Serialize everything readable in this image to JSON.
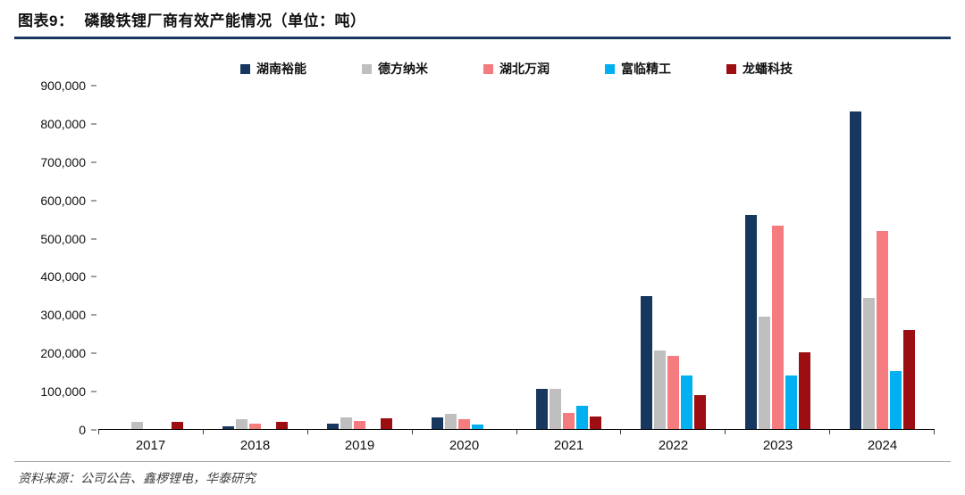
{
  "header": {
    "figure_label": "图表9：",
    "title": "磷酸铁锂厂商有效产能情况（单位：吨）"
  },
  "footer": {
    "source": "资料来源：公司公告、鑫椤锂电，华泰研究"
  },
  "colors": {
    "title_rule": "#17375E",
    "axis": "#000000"
  },
  "chart_data": {
    "type": "bar",
    "title": "磷酸铁锂厂商有效产能情况（单位：吨）",
    "figure_label": "图表9",
    "unit": "吨",
    "categories": [
      "2017",
      "2018",
      "2019",
      "2020",
      "2021",
      "2022",
      "2023",
      "2024"
    ],
    "series": [
      {
        "name": "湖南裕能",
        "key": "hunan-yuneng",
        "color": "#17375E",
        "values": [
          0,
          6000,
          15000,
          30000,
          105000,
          348000,
          562000,
          832000
        ]
      },
      {
        "name": "德方纳米",
        "key": "defang-nami",
        "color": "#BFBFBF",
        "values": [
          18000,
          25000,
          30000,
          40000,
          105000,
          205000,
          295000,
          343000
        ]
      },
      {
        "name": "湖北万润",
        "key": "hubei-wanrun",
        "color": "#F47C7E",
        "values": [
          0,
          14000,
          21000,
          26000,
          43000,
          192000,
          532000,
          520000
        ]
      },
      {
        "name": "富临精工",
        "key": "fulin-jinggong",
        "color": "#00B0F0",
        "values": [
          0,
          0,
          0,
          12000,
          60000,
          140000,
          140000,
          152000
        ]
      },
      {
        "name": "龙蟠科技",
        "key": "longpan-keji",
        "color": "#9D0E13",
        "values": [
          18000,
          18000,
          28000,
          0,
          32000,
          90000,
          200000,
          260000
        ]
      }
    ],
    "ylim": [
      0,
      900000
    ],
    "yticks": [
      {
        "value": 0,
        "label": "0"
      },
      {
        "value": 100000,
        "label": "100,000"
      },
      {
        "value": 200000,
        "label": "200,000"
      },
      {
        "value": 300000,
        "label": "300,000"
      },
      {
        "value": 400000,
        "label": "400,000"
      },
      {
        "value": 500000,
        "label": "500,000"
      },
      {
        "value": 600000,
        "label": "600,000"
      },
      {
        "value": 700000,
        "label": "700,000"
      },
      {
        "value": 800000,
        "label": "800,000"
      },
      {
        "value": 900000,
        "label": "900,000"
      }
    ],
    "legend_position": "top",
    "grid": false
  }
}
